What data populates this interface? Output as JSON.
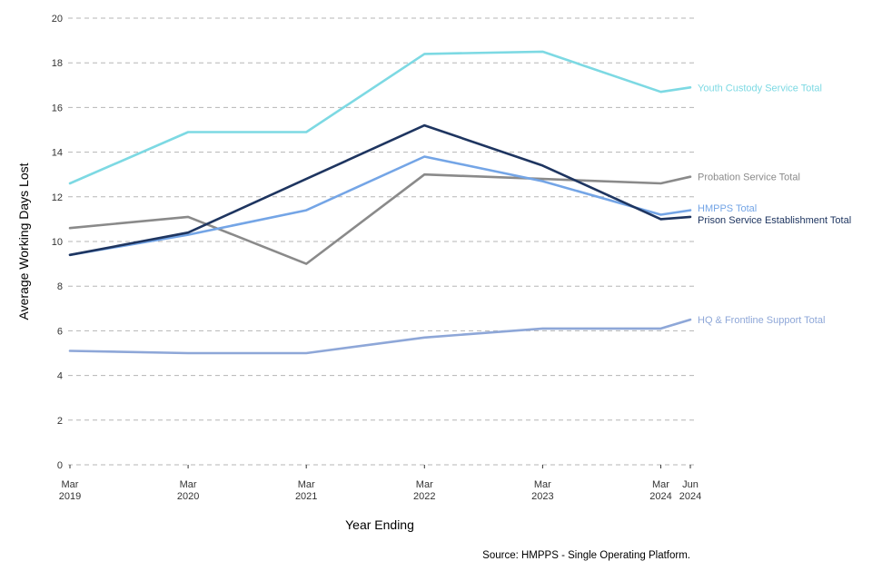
{
  "chart_data": {
    "type": "line",
    "title": "",
    "xlabel": "Year Ending",
    "ylabel": "Average Working Days Lost",
    "source": "Source: HMPPS - Single Operating Platform.",
    "ylim": [
      0,
      20
    ],
    "yticks": [
      0,
      2,
      4,
      6,
      8,
      10,
      12,
      14,
      16,
      18,
      20
    ],
    "grid": "horizontal dashed",
    "legend": "direct labels at right end of lines",
    "x": [
      "2019-03",
      "2020-03",
      "2021-03",
      "2022-03",
      "2023-03",
      "2024-03",
      "2024-06"
    ],
    "xticks": [
      {
        "line1": "Mar",
        "line2": "2019"
      },
      {
        "line1": "Mar",
        "line2": "2020"
      },
      {
        "line1": "Mar",
        "line2": "2021"
      },
      {
        "line1": "Mar",
        "line2": "2022"
      },
      {
        "line1": "Mar",
        "line2": "2023"
      },
      {
        "line1": "Mar",
        "line2": "2024"
      },
      {
        "line1": "Jun",
        "line2": "2024"
      }
    ],
    "series": [
      {
        "name": "Youth Custody Service Total",
        "color": "#7dd9e3",
        "values": [
          12.6,
          14.9,
          14.9,
          18.4,
          18.5,
          16.7,
          16.9
        ]
      },
      {
        "name": "Probation Service Total",
        "color": "#8a8a8a",
        "values": [
          10.6,
          11.1,
          9.0,
          13.0,
          12.8,
          12.6,
          12.9
        ]
      },
      {
        "name": "HMPPS Total",
        "color": "#74a5e6",
        "values": [
          9.4,
          10.3,
          11.4,
          13.8,
          12.7,
          11.2,
          11.4
        ]
      },
      {
        "name": "Prison Service Establishment Total",
        "color": "#1e3560",
        "values": [
          9.4,
          10.4,
          12.8,
          15.2,
          13.4,
          11.0,
          11.1
        ]
      },
      {
        "name": "HQ & Frontline Support Total",
        "color": "#8ea7d8",
        "values": [
          5.1,
          5.0,
          5.0,
          5.7,
          6.1,
          6.1,
          6.5
        ]
      }
    ]
  }
}
